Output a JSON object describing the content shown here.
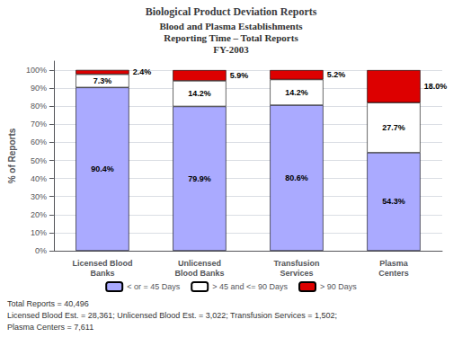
{
  "chart_data": {
    "type": "bar",
    "title": "Biological Product Deviation Reports",
    "subtitle": "Blood and Plasma Establishments\nReporting Time – Total Reports\nFY-2003",
    "categories": [
      "Licensed Blood\nBanks",
      "Unlicensed\nBlood Banks",
      "Transfusion\nServices",
      "Plasma\nCenters"
    ],
    "series": [
      {
        "name": "< or = 45 Days",
        "color": "#aaaaff",
        "values": [
          90.4,
          79.9,
          80.6,
          54.3
        ],
        "value_labels": [
          "90.4%",
          "79.9%",
          "80.6%",
          "54.3%"
        ]
      },
      {
        "name": "> 45 and <= 90 Days",
        "color": "#ffffff",
        "values": [
          7.3,
          14.2,
          14.2,
          27.7
        ],
        "value_labels": [
          "7.3%",
          "14.2%",
          "14.2%",
          "27.7%"
        ]
      },
      {
        "name": "> 90 Days",
        "color": "#dd0000",
        "values": [
          2.4,
          5.9,
          5.2,
          18.0
        ],
        "value_labels": [
          "2.4%",
          "5.9%",
          "5.2%",
          "18.0%"
        ]
      }
    ],
    "ylabel": "% of Reports",
    "ylim": [
      0,
      105
    ],
    "yticks": [
      {
        "value": 0,
        "label": "0%"
      },
      {
        "value": 10,
        "label": "10%"
      },
      {
        "value": 20,
        "label": "20%"
      },
      {
        "value": 30,
        "label": "30%"
      },
      {
        "value": 40,
        "label": "40%"
      },
      {
        "value": 50,
        "label": "50%"
      },
      {
        "value": 60,
        "label": "60%"
      },
      {
        "value": 70,
        "label": "70%"
      },
      {
        "value": 80,
        "label": "80%"
      },
      {
        "value": 90,
        "label": "90%"
      },
      {
        "value": 100,
        "label": "100%"
      }
    ],
    "grid": true,
    "stacked": true,
    "data_labels": true,
    "legend": "bottom",
    "annotations": [
      "Total Reports = 40,496",
      "Licensed Blood Est. = 28,361; Unlicensed Blood Est. = 3,022; Transfusion Services = 1,502;",
      "Plasma Centers = 7,611"
    ]
  }
}
